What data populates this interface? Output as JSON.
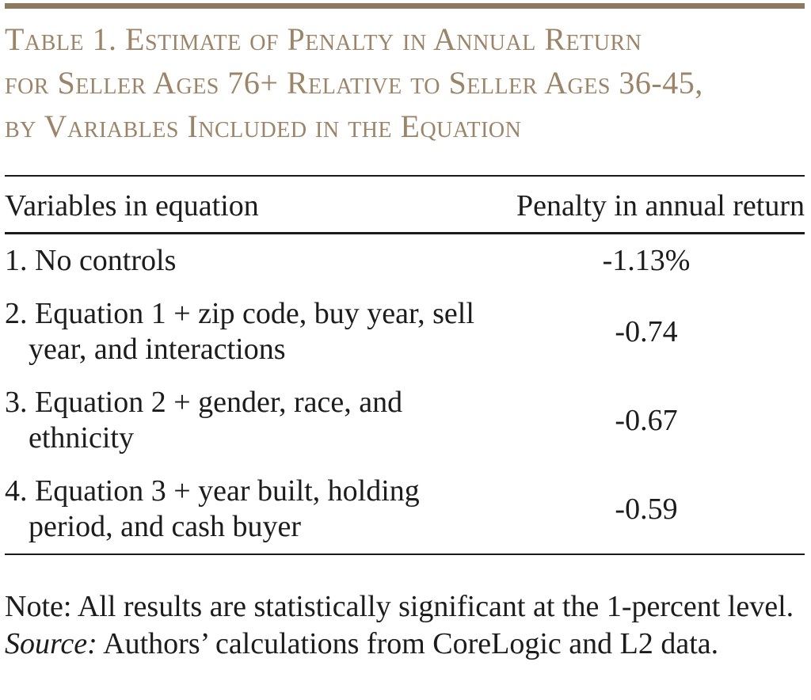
{
  "figure": {
    "title_lines": [
      "Table 1. Estimate of Penalty in Annual Return",
      "for Seller Ages 76+ Relative to Seller Ages 36-45,",
      "by Variables Included in the Equation"
    ]
  },
  "table": {
    "headers": [
      "Variables in equation",
      "Penalty in annual return"
    ],
    "rows": [
      {
        "num": "1.",
        "label": "No controls",
        "value": "-1.13%"
      },
      {
        "num": "2.",
        "label": "Equation 1 + zip code, buy year, sell year, and interactions",
        "value": "-0.74"
      },
      {
        "num": "3.",
        "label": "Equation 2 + gender, race, and ethnicity",
        "value": "-0.67"
      },
      {
        "num": "4.",
        "label": "Equation 3 + year built, holding period, and cash buyer",
        "value": "-0.59"
      }
    ]
  },
  "notes": {
    "note_label": "Note:",
    "note_text": "All results are statistically significant at the 1-percent level.",
    "source_label": "Source:",
    "source_text": "Authors’ calculations from CoreLogic and L2 data."
  },
  "colors": {
    "title_brown": "#9c8468",
    "rule_brown": "#8b7a5f",
    "rule_black": "#1a1a1a",
    "text_black": "#1c1c1c"
  }
}
